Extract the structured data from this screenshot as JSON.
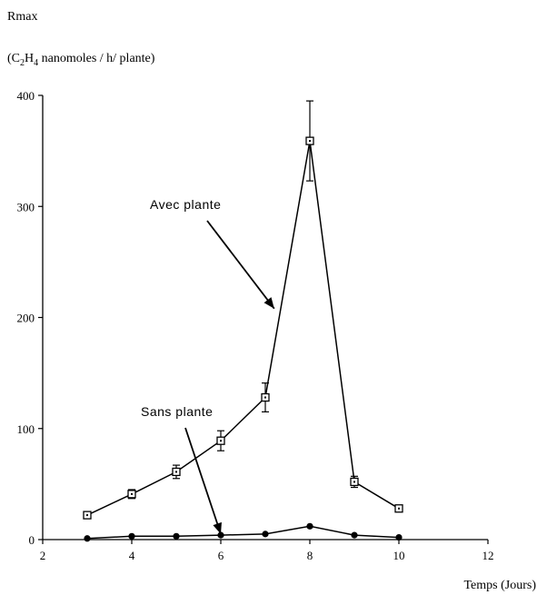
{
  "chart_data": {
    "type": "line",
    "ylabel_main": "Rmax",
    "ylabel_unit_prefix": "(C",
    "ylabel_unit_sub1": "2",
    "ylabel_unit_mid": "H",
    "ylabel_unit_sub2": "4",
    "ylabel_unit_suffix": " nanomoles / h/ plante)",
    "xlabel": "Temps (Jours)",
    "xlim": [
      2,
      12
    ],
    "ylim": [
      0,
      400
    ],
    "xticks": [
      2,
      4,
      6,
      8,
      10,
      12
    ],
    "yticks": [
      0,
      100,
      200,
      300,
      400
    ],
    "grid": false,
    "series": [
      {
        "name": "Avec plante",
        "marker": "open-square",
        "x": [
          3,
          4,
          5,
          6,
          7,
          8,
          9,
          10
        ],
        "y": [
          22,
          41,
          61,
          89,
          128,
          359,
          52,
          28
        ],
        "error": [
          0,
          4,
          6,
          9,
          13,
          36,
          5,
          0
        ]
      },
      {
        "name": "Sans plante",
        "marker": "filled-circle",
        "x": [
          3,
          4,
          5,
          6,
          7,
          8,
          9,
          10
        ],
        "y": [
          1,
          3,
          3,
          4,
          5,
          12,
          4,
          2
        ],
        "error": [
          0,
          0,
          0,
          0,
          0,
          0,
          0,
          0
        ]
      }
    ],
    "annotations": [
      {
        "text": "Avec plante",
        "series": "Avec plante",
        "arrow_to": [
          7.2,
          208
        ]
      },
      {
        "text": "Sans plante",
        "series": "Sans plante",
        "arrow_to": [
          6.0,
          5
        ]
      }
    ]
  }
}
